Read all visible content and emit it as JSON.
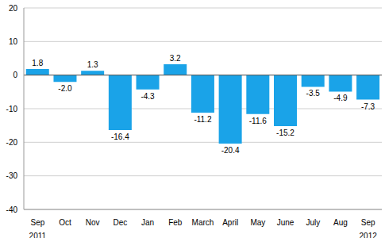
{
  "chart_data": {
    "type": "bar",
    "categories": [
      "Sep 2011",
      "Oct",
      "Nov",
      "Dec",
      "Jan",
      "Feb",
      "March",
      "April",
      "May",
      "June",
      "July",
      "Aug",
      "Sep 2012"
    ],
    "values": [
      1.8,
      -2.0,
      1.3,
      -16.4,
      -4.3,
      3.2,
      -11.2,
      -20.4,
      -11.6,
      -15.2,
      -3.5,
      -4.9,
      -7.3
    ],
    "value_labels": [
      "1.8",
      "-2.0",
      "1.3",
      "-16.4",
      "-4.3",
      "3.2",
      "-11.2",
      "-20.4",
      "-11.6",
      "-15.2",
      "-3.5",
      "-4.9",
      "-7.3"
    ],
    "color": "#1aa3e8",
    "ylim": [
      -40,
      20
    ],
    "yticks": [
      -40,
      -30,
      -20,
      -10,
      0,
      10,
      20
    ],
    "grid": true,
    "data_labels": true
  }
}
